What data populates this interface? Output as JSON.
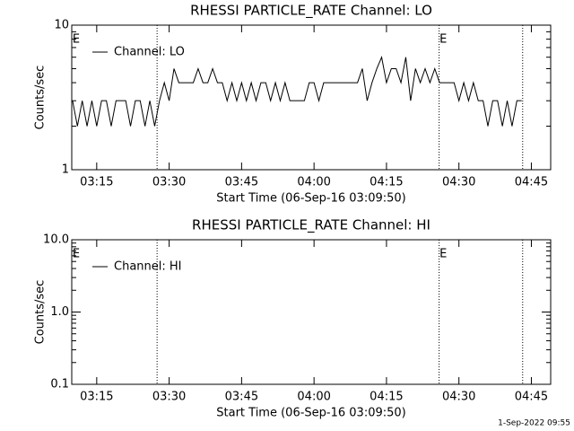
{
  "chart_data": [
    {
      "type": "line",
      "title": "RHESSI PARTICLE_RATE Channel: LO",
      "x_label": "Start Time (06-Sep-16 03:09:50)",
      "y_label": "Counts/sec",
      "log_y": true,
      "ylim": [
        1,
        10
      ],
      "yticks": [
        1,
        10
      ],
      "xlim": [
        189.83,
        289
      ],
      "xticks": [
        {
          "value": 195,
          "label": "03:15"
        },
        {
          "value": 210,
          "label": "03:30"
        },
        {
          "value": 225,
          "label": "03:45"
        },
        {
          "value": 240,
          "label": "04:00"
        },
        {
          "value": 255,
          "label": "04:15"
        },
        {
          "value": 270,
          "label": "04:30"
        },
        {
          "value": 285,
          "label": "04:45"
        }
      ],
      "vlines": [
        207.5,
        265.9,
        283.2
      ],
      "annotations": [
        {
          "text": "E",
          "x": 190
        },
        {
          "text": "E",
          "x": 266
        }
      ],
      "legend": "upper left",
      "x": [
        190,
        191,
        192,
        193,
        194,
        195,
        196,
        197,
        198,
        199,
        200,
        201,
        202,
        203,
        204,
        205,
        206,
        207,
        208,
        209,
        210,
        211,
        212,
        213,
        214,
        215,
        216,
        217,
        218,
        219,
        220,
        221,
        222,
        223,
        224,
        225,
        226,
        227,
        228,
        229,
        230,
        231,
        232,
        233,
        234,
        235,
        236,
        237,
        238,
        239,
        240,
        241,
        242,
        243,
        244,
        245,
        246,
        247,
        248,
        249,
        250,
        251,
        252,
        253,
        254,
        255,
        256,
        257,
        258,
        259,
        260,
        261,
        262,
        263,
        264,
        265,
        266,
        267,
        268,
        269,
        270,
        271,
        272,
        273,
        274,
        275,
        276,
        277,
        278,
        279,
        280,
        281,
        282,
        283
      ],
      "series": [
        {
          "name": "Channel: LO",
          "color": "#000000",
          "values": [
            3,
            2,
            3,
            2,
            3,
            2,
            3,
            3,
            2,
            3,
            3,
            3,
            2,
            3,
            3,
            2,
            3,
            2,
            3,
            4,
            3,
            5,
            4,
            4,
            4,
            4,
            5,
            4,
            4,
            5,
            4,
            4,
            3,
            4,
            3,
            4,
            3,
            4,
            3,
            4,
            4,
            3,
            4,
            3,
            4,
            3,
            3,
            3,
            3,
            4,
            4,
            3,
            4,
            4,
            4,
            4,
            4,
            4,
            4,
            4,
            5,
            3,
            4,
            5,
            6,
            4,
            5,
            5,
            4,
            6,
            3,
            5,
            4,
            5,
            4,
            5,
            4,
            4,
            4,
            4,
            3,
            4,
            3,
            4,
            3,
            3,
            2,
            3,
            3,
            2,
            3,
            2,
            3,
            3
          ]
        }
      ]
    },
    {
      "type": "line",
      "title": "RHESSI PARTICLE_RATE Channel: HI",
      "x_label": "Start Time (06-Sep-16 03:09:50)",
      "y_label": "Counts/sec",
      "log_y": true,
      "ylim": [
        0.1,
        10
      ],
      "yticks": [
        0.1,
        {
          "value": 1,
          "label": "1.0"
        },
        {
          "value": 10,
          "label": "10.0"
        }
      ],
      "xlim": [
        189.83,
        289
      ],
      "xticks": [
        {
          "value": 195,
          "label": "03:15"
        },
        {
          "value": 210,
          "label": "03:30"
        },
        {
          "value": 225,
          "label": "03:45"
        },
        {
          "value": 240,
          "label": "04:00"
        },
        {
          "value": 255,
          "label": "04:15"
        },
        {
          "value": 270,
          "label": "04:30"
        },
        {
          "value": 285,
          "label": "04:45"
        }
      ],
      "vlines": [
        207.5,
        265.9,
        283.2
      ],
      "annotations": [
        {
          "text": "E",
          "x": 190
        },
        {
          "text": "E",
          "x": 266
        }
      ],
      "legend": "upper left",
      "x": [],
      "series": [
        {
          "name": "Channel: HI",
          "color": "#000000",
          "values": []
        }
      ]
    }
  ],
  "footer": "1-Sep-2022 09:55"
}
